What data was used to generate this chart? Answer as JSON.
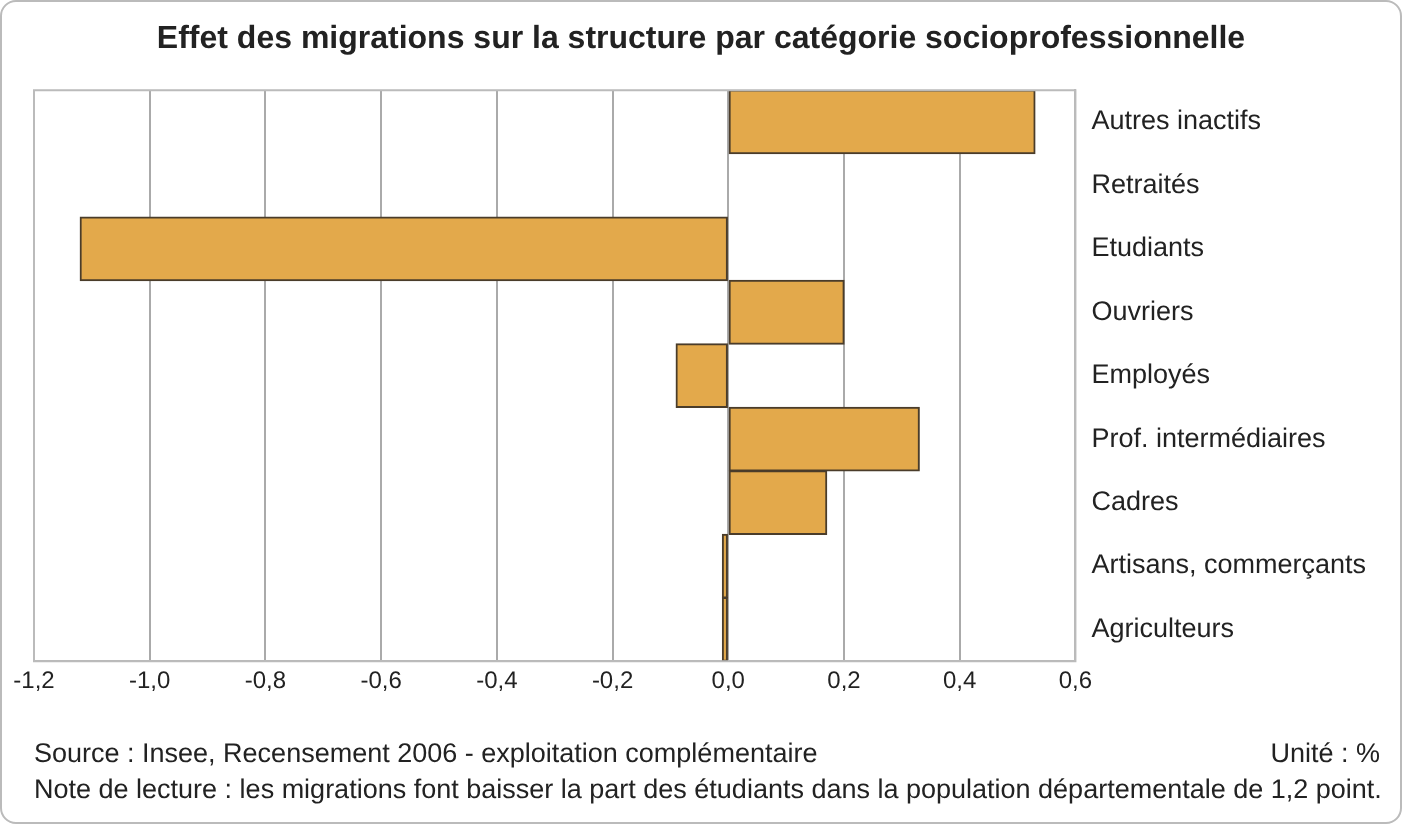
{
  "chart_data": {
    "type": "bar",
    "orientation": "horizontal",
    "title": "Effet des migrations sur la structure par catégorie socioprofessionnelle",
    "categories": [
      "Autres inactifs",
      "Retraités",
      "Etudiants",
      "Ouvriers",
      "Employés",
      "Prof. intermédiaires",
      "Cadres",
      "Artisans, commerçants",
      "Agriculteurs"
    ],
    "values": [
      0.53,
      0,
      -1.12,
      0.2,
      -0.09,
      0.33,
      0.17,
      -0.01,
      -0.01
    ],
    "color": "#e3a94b",
    "xlim": [
      -1.2,
      0.6
    ],
    "xticks": [
      {
        "value": -1.2,
        "label": "-1,2"
      },
      {
        "value": -1,
        "label": "-1,0"
      },
      {
        "value": -0.8,
        "label": "-0,8"
      },
      {
        "value": -0.6,
        "label": "-0,6"
      },
      {
        "value": -0.4,
        "label": "-0,4"
      },
      {
        "value": -0.2,
        "label": "-0,2"
      },
      {
        "value": 0,
        "label": "0,0"
      },
      {
        "value": 0.2,
        "label": "0,2"
      },
      {
        "value": 0.4,
        "label": "0,4"
      },
      {
        "value": 0.6,
        "label": "0,6"
      }
    ],
    "grid": "x",
    "annotations": [
      "Source : Insee, Recensement 2006 - exploitation complémentaire",
      "Unité : %",
      "Note de lecture : les migrations font baisser la part des étudiants dans la population départementale de 1,2 point."
    ]
  }
}
